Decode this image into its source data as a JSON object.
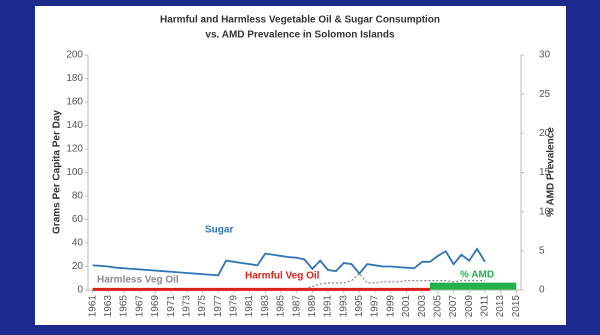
{
  "chart_data": {
    "type": "line",
    "title": "Harmful and Harmless  Vegetable Oil & Sugar Consumption",
    "subtitle": "vs. AMD Prevalence in Solomon Islands",
    "y_label": "Grams Per Capita Per Day",
    "y2_label": "% AMD Prevalence",
    "xlim": [
      1960.4,
      2015.6
    ],
    "xticks": [
      1961,
      1963,
      1965,
      1967,
      1969,
      1971,
      1973,
      1975,
      1977,
      1979,
      1981,
      1983,
      1985,
      1987,
      1989,
      1991,
      1993,
      1995,
      1997,
      1999,
      2001,
      2003,
      2005,
      2007,
      2009,
      2011,
      2013,
      2015
    ],
    "ylim": [
      0,
      200
    ],
    "yticks": [
      0,
      20,
      40,
      60,
      80,
      100,
      120,
      140,
      160,
      180,
      200
    ],
    "y2lim": [
      0,
      30
    ],
    "y2ticks": [
      0,
      5,
      10,
      15,
      20,
      25,
      30
    ],
    "series": [
      {
        "name": "Sugar",
        "color": "#2e75b6",
        "width": 1.8,
        "dash": "none",
        "x": [
          1961,
          1962,
          1963,
          1964,
          1965,
          1966,
          1967,
          1968,
          1969,
          1970,
          1971,
          1972,
          1973,
          1974,
          1975,
          1976,
          1977,
          1978,
          1979,
          1980,
          1981,
          1982,
          1983,
          1984,
          1985,
          1986,
          1987,
          1988,
          1989,
          1990,
          1991,
          1992,
          1993,
          1994,
          1995,
          1996,
          1997,
          1998,
          1999,
          2000,
          2001,
          2002,
          2003,
          2004,
          2005,
          2006,
          2007,
          2008,
          2009,
          2010,
          2011
        ],
        "values": [
          21,
          20.5,
          20,
          19,
          18.5,
          18,
          17.5,
          17,
          16.5,
          16,
          15.5,
          15,
          14.5,
          14,
          13.5,
          13,
          12.5,
          25,
          24,
          23,
          22,
          21,
          31,
          30,
          29,
          28,
          27.5,
          26,
          18,
          25,
          17,
          16,
          23,
          22,
          14,
          22,
          21,
          20,
          20,
          19.5,
          19,
          18.5,
          24,
          24,
          29,
          33,
          22,
          30,
          25,
          35,
          24
        ]
      },
      {
        "name": "Harmless  Veg Oil",
        "color": "#8c8c8c",
        "width": 1.3,
        "dash": "2 2",
        "x": [
          1961,
          1988,
          1989,
          1990,
          1991,
          1992,
          1993,
          1994,
          1995,
          1996,
          1997,
          1998,
          1999,
          2000,
          2001,
          2002,
          2003,
          2004,
          2005,
          2006,
          2007,
          2008,
          2009,
          2010,
          2011
        ],
        "values": [
          1,
          1,
          3,
          5,
          6,
          6,
          6,
          8,
          14,
          6,
          6,
          7,
          7,
          7,
          8,
          8,
          8,
          8,
          8,
          8,
          7,
          8,
          8,
          8,
          8
        ]
      },
      {
        "name": "Harmful Veg Oil",
        "color": "#e0201b",
        "width": 3,
        "dash": "none",
        "x": [
          1961,
          2004
        ],
        "values": [
          0.5,
          0.5
        ]
      },
      {
        "name": "% AMD",
        "color": "#22b14c",
        "width": 7,
        "dash": "none",
        "axis": "y2",
        "x": [
          2004,
          2015
        ],
        "values": [
          0.5,
          0.5
        ]
      }
    ]
  }
}
